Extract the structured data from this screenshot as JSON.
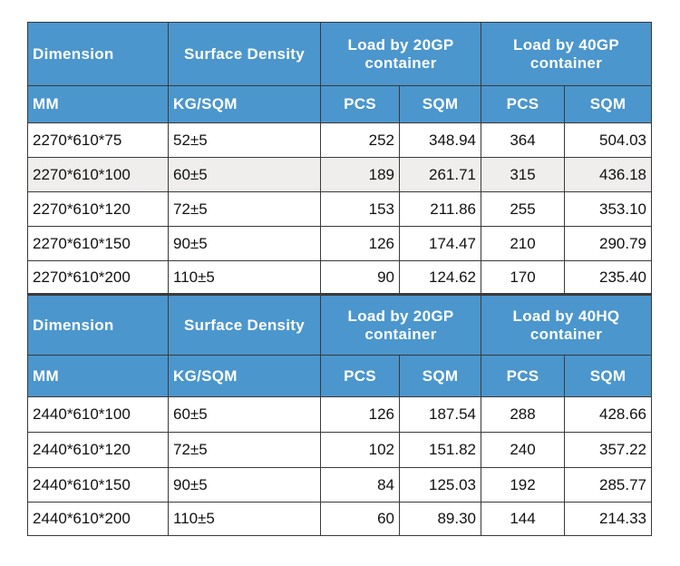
{
  "tables": [
    {
      "header": [
        "Dimension",
        "Surface Density",
        "Load by 20GP container",
        "Load by 40GP container"
      ],
      "units": [
        "MM",
        "KG/SQM",
        "PCS",
        "SQM",
        "PCS",
        "SQM"
      ],
      "rows": [
        [
          "2270*610*75",
          "52±5",
          "252",
          "348.94",
          "364",
          "504.03"
        ],
        [
          "2270*610*100",
          "60±5",
          "189",
          "261.71",
          "315",
          "436.18"
        ],
        [
          "2270*610*120",
          "72±5",
          "153",
          "211.86",
          "255",
          "353.10"
        ],
        [
          "2270*610*150",
          "90±5",
          "126",
          "174.47",
          "210",
          "290.79"
        ],
        [
          "2270*610*200",
          "110±5",
          "90",
          "124.62",
          "170",
          "235.40"
        ]
      ]
    },
    {
      "header": [
        "Dimension",
        "Surface Density",
        "Load by 20GP container",
        "Load by 40HQ container"
      ],
      "units": [
        "MM",
        "KG/SQM",
        "PCS",
        "SQM",
        "PCS",
        "SQM"
      ],
      "rows": [
        [
          "2440*610*100",
          "60±5",
          "126",
          "187.54",
          "288",
          "428.66"
        ],
        [
          "2440*610*120",
          "72±5",
          "102",
          "151.82",
          "240",
          "357.22"
        ],
        [
          "2440*610*150",
          "90±5",
          "84",
          "125.03",
          "192",
          "285.77"
        ],
        [
          "2440*610*200",
          "110±5",
          "60",
          "89.30",
          "144",
          "214.33"
        ]
      ]
    }
  ]
}
